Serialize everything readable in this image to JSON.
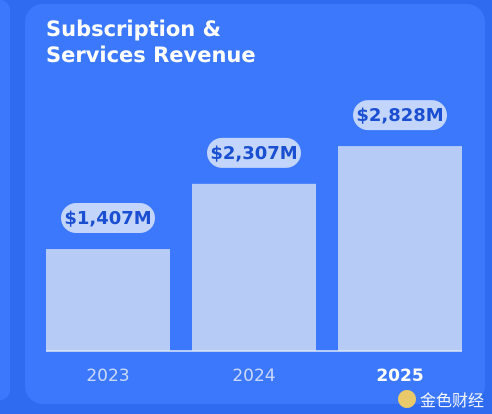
{
  "title": "Subscription & Services Revenue",
  "title_lines": [
    "Subscription &",
    "Services Revenue"
  ],
  "colors": {
    "background": "#2f6bf1",
    "card": "#3b78fb",
    "bar": "#b7cbf7",
    "label_pill": "#c3d5fb",
    "label_text": "#1a4fd2"
  },
  "watermark": "金色财经",
  "chart_data": {
    "type": "bar",
    "title": "Subscription & Services Revenue",
    "categories": [
      "2023",
      "2024",
      "2025"
    ],
    "values": [
      1407,
      2307,
      2828
    ],
    "data_labels": [
      "$1,407M",
      "$2,307M",
      "$2,828M"
    ],
    "highlight_category": "2025",
    "unit": "$M",
    "xlabel": "",
    "ylabel": "",
    "ylim": [
      0,
      3050
    ],
    "grid": false,
    "legend": "none"
  }
}
